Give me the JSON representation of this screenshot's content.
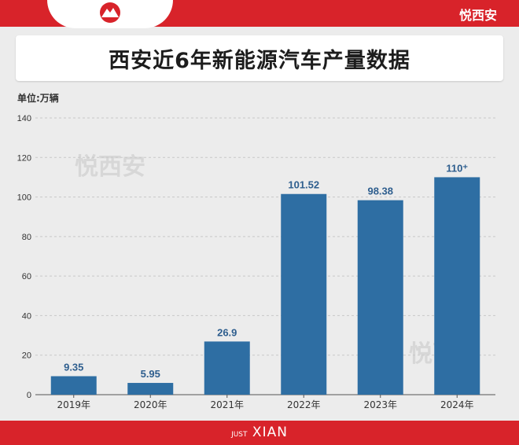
{
  "header": {
    "brand": "悦西安"
  },
  "title": "西安近6年新能源汽车产量数据",
  "unit_label": "单位:万辆",
  "watermark": "悦西安",
  "footer": {
    "small": "JUST",
    "big": "XIAN"
  },
  "colors": {
    "bar": "#2e6ea3",
    "label": "#2e5e8e",
    "accent": "#d8232a"
  },
  "chart_data": {
    "type": "bar",
    "categories": [
      "2019年",
      "2020年",
      "2021年",
      "2022年",
      "2023年",
      "2024年"
    ],
    "values": [
      9.35,
      5.95,
      26.9,
      101.52,
      98.38,
      110
    ],
    "data_labels": [
      "9.35",
      "5.95",
      "26.9",
      "101.52",
      "98.38",
      "110⁺"
    ],
    "ylim": [
      0,
      140
    ],
    "yticks": [
      0,
      20,
      40,
      60,
      80,
      100,
      120,
      140
    ],
    "grid": true,
    "title": "西安近6年新能源汽车产量数据",
    "ylabel": "单位:万辆"
  }
}
